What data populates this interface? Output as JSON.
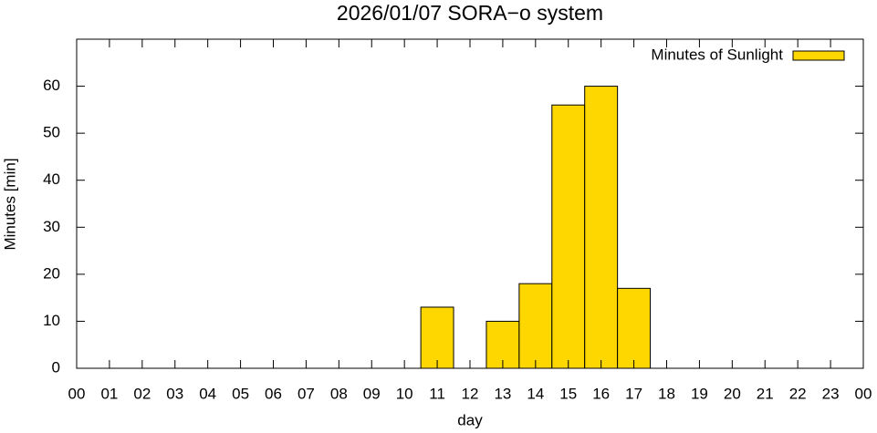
{
  "chart_data": {
    "type": "bar",
    "title": "2026/01/07 SORA−o system",
    "x_label": "day",
    "y_label": "Minutes [min]",
    "series": [
      {
        "name": "Minutes of Sunlight",
        "color": "#ffd700",
        "x": [
          11,
          13,
          14,
          15,
          16,
          17
        ],
        "values": [
          13,
          10,
          18,
          56,
          60,
          17
        ]
      }
    ],
    "bar_width": 1,
    "xlim": [
      0,
      24
    ],
    "xticks": [
      {
        "value": 0,
        "label": "00"
      },
      {
        "value": 1,
        "label": "01"
      },
      {
        "value": 2,
        "label": "02"
      },
      {
        "value": 3,
        "label": "03"
      },
      {
        "value": 4,
        "label": "04"
      },
      {
        "value": 5,
        "label": "05"
      },
      {
        "value": 6,
        "label": "06"
      },
      {
        "value": 7,
        "label": "07"
      },
      {
        "value": 8,
        "label": "08"
      },
      {
        "value": 9,
        "label": "09"
      },
      {
        "value": 10,
        "label": "10"
      },
      {
        "value": 11,
        "label": "11"
      },
      {
        "value": 12,
        "label": "12"
      },
      {
        "value": 13,
        "label": "13"
      },
      {
        "value": 14,
        "label": "14"
      },
      {
        "value": 15,
        "label": "15"
      },
      {
        "value": 16,
        "label": "16"
      },
      {
        "value": 17,
        "label": "17"
      },
      {
        "value": 18,
        "label": "18"
      },
      {
        "value": 19,
        "label": "19"
      },
      {
        "value": 20,
        "label": "20"
      },
      {
        "value": 21,
        "label": "21"
      },
      {
        "value": 22,
        "label": "22"
      },
      {
        "value": 23,
        "label": "23"
      },
      {
        "value": 24,
        "label": "00"
      }
    ],
    "ylim": [
      0,
      70
    ],
    "yticks": [
      0,
      10,
      20,
      30,
      40,
      50,
      60
    ],
    "legend": "top-right"
  }
}
